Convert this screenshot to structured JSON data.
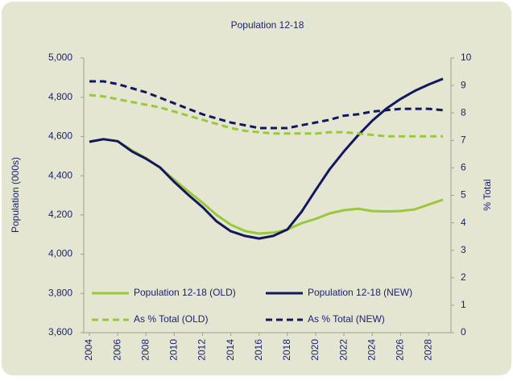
{
  "chart_data": {
    "type": "line",
    "title": "Population 12-18",
    "y_label": "Population (000s)",
    "y2_label": "% Total",
    "x": [
      2004,
      2005,
      2006,
      2007,
      2008,
      2009,
      2010,
      2011,
      2012,
      2013,
      2014,
      2015,
      2016,
      2017,
      2018,
      2019,
      2020,
      2021,
      2022,
      2023,
      2024,
      2025,
      2026,
      2027,
      2028,
      2029
    ],
    "xlim": [
      2004,
      2029
    ],
    "xticks": [
      2004,
      2006,
      2008,
      2010,
      2012,
      2014,
      2016,
      2018,
      2020,
      2022,
      2024,
      2026,
      2028
    ],
    "ylim": [
      3600,
      5000
    ],
    "yticks": [
      {
        "value": 3600,
        "label": "3,600"
      },
      {
        "value": 3800,
        "label": "3,800"
      },
      {
        "value": 4000,
        "label": "4,000"
      },
      {
        "value": 4200,
        "label": "4,200"
      },
      {
        "value": 4400,
        "label": "4,400"
      },
      {
        "value": 4600,
        "label": "4,600"
      },
      {
        "value": 4800,
        "label": "4,800"
      },
      {
        "value": 5000,
        "label": "5,000"
      }
    ],
    "y2lim": [
      0,
      10
    ],
    "y2ticks": [
      0,
      1,
      2,
      3,
      4,
      5,
      6,
      7,
      8,
      9,
      10
    ],
    "legend": "bottom",
    "series": [
      {
        "name": "Population 12-18 (OLD)",
        "color": "#99c93a",
        "style": "solid",
        "values": [
          4573,
          4586,
          4576,
          4530,
          4490,
          4440,
          4380,
          4320,
          4262,
          4200,
          4150,
          4118,
          4105,
          4110,
          4125,
          4158,
          4180,
          4208,
          4224,
          4232,
          4220,
          4218,
          4220,
          4228,
          4253,
          4278
        ]
      },
      {
        "name": "Population 12-18 (NEW)",
        "color": "#13185e",
        "style": "solid",
        "values": [
          4573,
          4586,
          4576,
          4524,
          4487,
          4442,
          4368,
          4302,
          4240,
          4167,
          4117,
          4093,
          4080,
          4093,
          4126,
          4216,
          4327,
          4434,
          4524,
          4606,
          4680,
          4742,
          4791,
          4832,
          4865,
          4894
        ]
      },
      {
        "name": "As % Total (OLD)",
        "color": "#99c93a",
        "style": "dashed",
        "axis": "y2",
        "values": [
          8.65,
          8.6,
          8.5,
          8.4,
          8.3,
          8.2,
          8.05,
          7.9,
          7.75,
          7.6,
          7.45,
          7.35,
          7.3,
          7.25,
          7.25,
          7.25,
          7.25,
          7.3,
          7.3,
          7.25,
          7.2,
          7.15,
          7.15,
          7.15,
          7.15,
          7.15
        ]
      },
      {
        "name": "As % Total (NEW)",
        "color": "#13185e",
        "style": "dashed",
        "axis": "y2",
        "values": [
          9.15,
          9.15,
          9.05,
          8.9,
          8.75,
          8.55,
          8.35,
          8.15,
          7.95,
          7.8,
          7.65,
          7.55,
          7.45,
          7.45,
          7.45,
          7.55,
          7.65,
          7.75,
          7.9,
          7.95,
          8.05,
          8.1,
          8.15,
          8.15,
          8.15,
          8.1
        ]
      }
    ]
  }
}
